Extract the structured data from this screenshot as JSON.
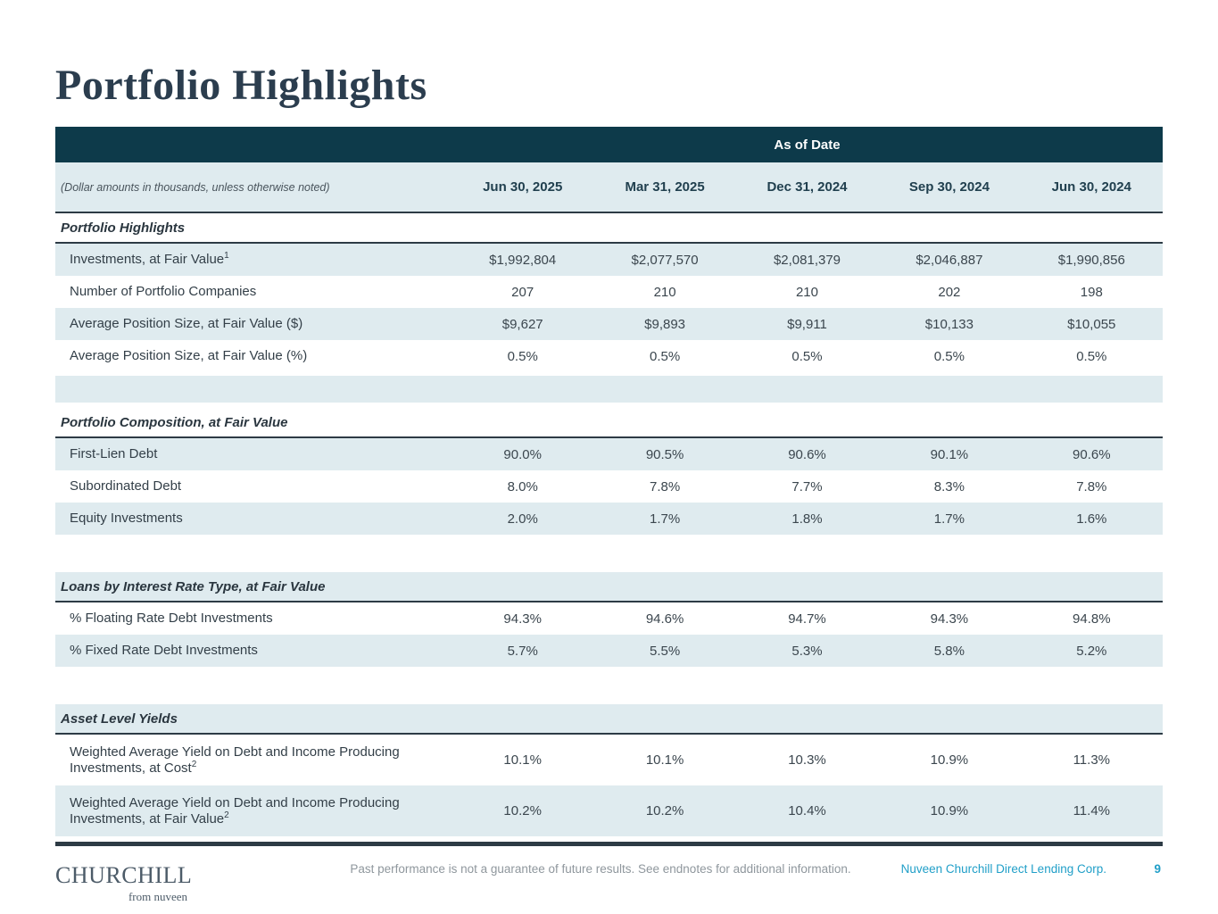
{
  "page": {
    "title": "Portfolio Highlights"
  },
  "table": {
    "banner": "As of Date",
    "note": "(Dollar amounts in thousands, unless otherwise noted)",
    "columns": [
      "Jun 30, 2025",
      "Mar 31, 2025",
      "Dec 31, 2024",
      "Sep 30, 2024",
      "Jun 30, 2024"
    ],
    "sections": [
      {
        "label": "Portfolio Highlights",
        "rows": [
          {
            "label": "Investments, at Fair Value",
            "sup": "1",
            "values": [
              "$1,992,804",
              "$2,077,570",
              "$2,081,379",
              "$2,046,887",
              "$1,990,856"
            ]
          },
          {
            "label": "Number of Portfolio Companies",
            "sup": "",
            "values": [
              "207",
              "210",
              "210",
              "202",
              "198"
            ]
          },
          {
            "label": "Average Position Size, at Fair Value ($)",
            "sup": "",
            "values": [
              "$9,627",
              "$9,893",
              "$9,911",
              "$10,133",
              "$10,055"
            ]
          },
          {
            "label": "Average Position Size, at Fair Value (%)",
            "sup": "",
            "values": [
              "0.5%",
              "0.5%",
              "0.5%",
              "0.5%",
              "0.5%"
            ]
          }
        ]
      },
      {
        "label": "Portfolio Composition, at Fair Value",
        "rows": [
          {
            "label": "First-Lien Debt",
            "sup": "",
            "values": [
              "90.0%",
              "90.5%",
              "90.6%",
              "90.1%",
              "90.6%"
            ]
          },
          {
            "label": "Subordinated Debt",
            "sup": "",
            "values": [
              "8.0%",
              "7.8%",
              "7.7%",
              "8.3%",
              "7.8%"
            ]
          },
          {
            "label": "Equity Investments",
            "sup": "",
            "values": [
              "2.0%",
              "1.7%",
              "1.8%",
              "1.7%",
              "1.6%"
            ]
          }
        ]
      },
      {
        "label": "Loans by Interest Rate Type, at Fair Value",
        "rows": [
          {
            "label": "% Floating Rate Debt Investments",
            "sup": "",
            "values": [
              "94.3%",
              "94.6%",
              "94.7%",
              "94.3%",
              "94.8%"
            ]
          },
          {
            "label": "% Fixed Rate Debt Investments",
            "sup": "",
            "values": [
              "5.7%",
              "5.5%",
              "5.3%",
              "5.8%",
              "5.2%"
            ]
          }
        ]
      },
      {
        "label": "Asset Level Yields",
        "rows": [
          {
            "label": "Weighted Average Yield on Debt and Income Producing Investments, at Cost",
            "sup": "2",
            "values": [
              "10.1%",
              "10.1%",
              "10.3%",
              "10.9%",
              "11.3%"
            ]
          },
          {
            "label": "Weighted Average Yield on Debt and Income Producing Investments, at Fair Value",
            "sup": "2",
            "values": [
              "10.2%",
              "10.2%",
              "10.4%",
              "10.9%",
              "11.4%"
            ]
          }
        ]
      }
    ]
  },
  "footer": {
    "logo_primary": "CHURCHILL",
    "logo_secondary": "from nuveen",
    "disclaimer": "Past performance is not a guarantee of future results. See endnotes for additional information.",
    "company": "Nuveen Churchill Direct Lending Corp.",
    "page_number": "9"
  }
}
